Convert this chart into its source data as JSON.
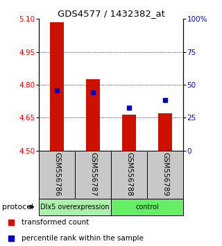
{
  "title": "GDS4577 / 1432382_at",
  "samples": [
    "GSM556786",
    "GSM556787",
    "GSM556788",
    "GSM556789"
  ],
  "bar_bottoms": [
    4.5,
    4.5,
    4.5,
    4.5
  ],
  "bar_tops": [
    5.085,
    4.825,
    4.665,
    4.67
  ],
  "blue_y": [
    4.775,
    4.765,
    4.695,
    4.73
  ],
  "ylim": [
    4.5,
    5.1
  ],
  "yticks_left": [
    4.5,
    4.65,
    4.8,
    4.95,
    5.1
  ],
  "yticks_right": [
    0,
    25,
    50,
    75,
    100
  ],
  "right_ylim": [
    0,
    100
  ],
  "groups": [
    {
      "label": "Dlx5 overexpression",
      "indices": [
        0,
        1
      ],
      "color": "#aaf0aa"
    },
    {
      "label": "control",
      "indices": [
        2,
        3
      ],
      "color": "#66ee66"
    }
  ],
  "protocol_label": "protocol",
  "bar_color": "#cc1100",
  "blue_color": "#0000cc",
  "legend_items": [
    {
      "color": "#cc1100",
      "label": "transformed count"
    },
    {
      "color": "#0000cc",
      "label": "percentile rank within the sample"
    }
  ],
  "background_color": "#ffffff",
  "sample_box_color": "#c8c8c8",
  "bar_width": 0.4
}
